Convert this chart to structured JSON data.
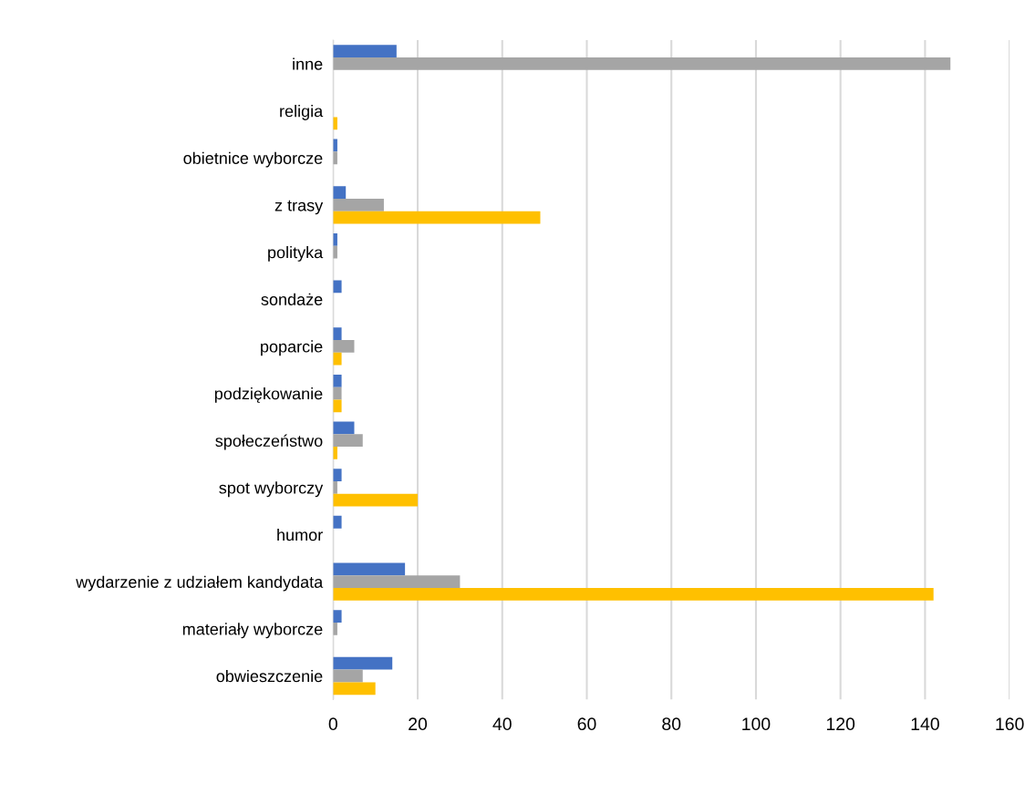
{
  "chart_data": {
    "type": "bar",
    "orientation": "horizontal",
    "categories": [
      "inne",
      "religia",
      "obietnice wyborcze",
      "z trasy",
      "polityka",
      "sondaże",
      "poparcie",
      "podziękowanie",
      "społeczeństwo",
      "spot wyborczy",
      "humor",
      "wydarzenie z udziałem kandydata",
      "materiały wyborcze",
      "obwieszczenie"
    ],
    "series": [
      {
        "color": "#4472c4",
        "values": [
          15,
          0,
          1,
          3,
          1,
          2,
          2,
          2,
          5,
          2,
          2,
          17,
          2,
          14
        ]
      },
      {
        "color": "#a5a5a5",
        "values": [
          146,
          0,
          1,
          12,
          1,
          0,
          5,
          2,
          7,
          1,
          0,
          30,
          1,
          7
        ]
      },
      {
        "color": "#ffc000",
        "values": [
          0,
          1,
          0,
          49,
          0,
          0,
          2,
          2,
          1,
          20,
          0,
          142,
          0,
          10
        ]
      }
    ],
    "xlim": [
      0,
      160
    ],
    "xticks": [
      0,
      20,
      40,
      60,
      80,
      100,
      120,
      140,
      160
    ],
    "grid": "x"
  }
}
